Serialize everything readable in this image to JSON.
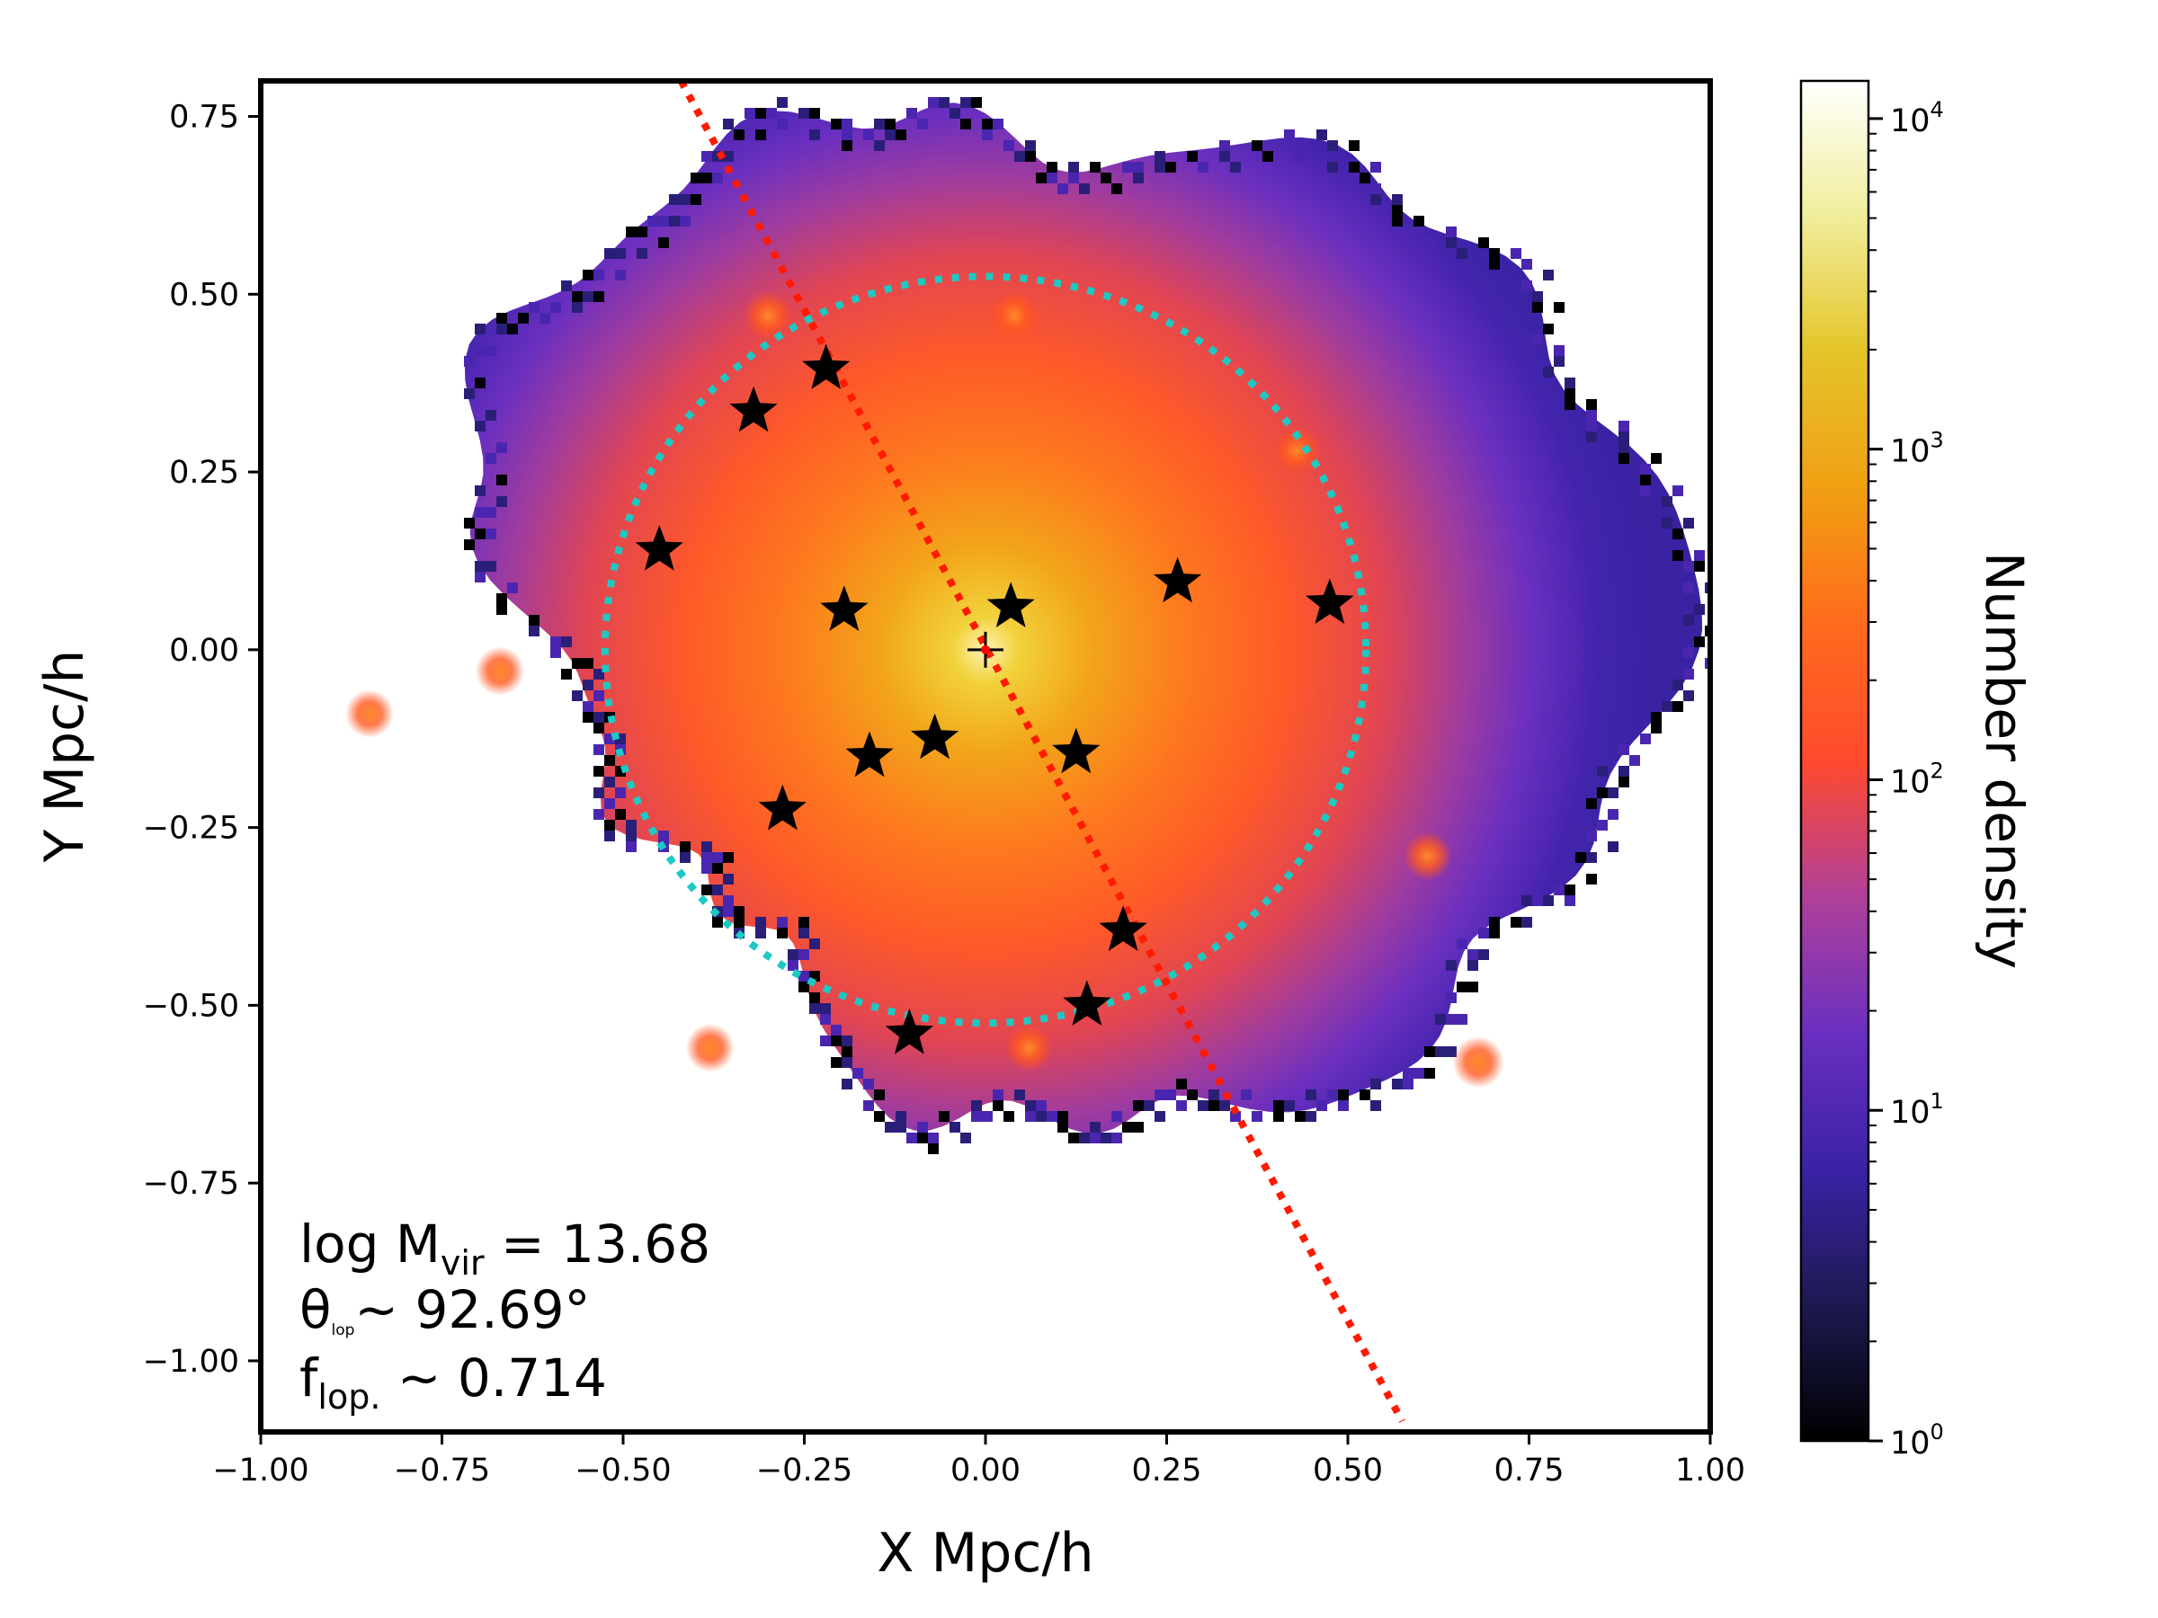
{
  "chart_data": {
    "type": "heatmap",
    "description_of_panel": "2D histogram of particle number density with overlaid satellite positions",
    "xlabel": "X Mpc/h",
    "ylabel": "Y Mpc/h",
    "xlim": [
      -1.0,
      1.0
    ],
    "ylim": [
      -1.1,
      0.8
    ],
    "xticks": [
      -1.0,
      -0.75,
      -0.5,
      -0.25,
      0.0,
      0.25,
      0.5,
      0.75,
      1.0
    ],
    "xtick_labels": [
      "−1.00",
      "−0.75",
      "−0.50",
      "−0.25",
      "0.00",
      "0.25",
      "0.50",
      "0.75",
      "1.00"
    ],
    "yticks": [
      0.75,
      0.5,
      0.25,
      0.0,
      -0.25,
      -0.5,
      -0.75,
      -1.0
    ],
    "ytick_labels": [
      "0.75",
      "0.50",
      "0.25",
      "0.00",
      "−0.25",
      "−0.50",
      "−0.75",
      "−1.00"
    ],
    "colorbar": {
      "label": "Number density",
      "scale": "log",
      "range": [
        1,
        13000
      ],
      "colormap": [
        "#000000",
        "#1c1a50",
        "#3b22a6",
        "#6a2fc0",
        "#b0409a",
        "#ff4a2e",
        "#ff6a1c",
        "#f0a012",
        "#e4c428",
        "#f0ee9a",
        "#ffffff"
      ],
      "major_ticks": [
        {
          "value": 1,
          "base": "10",
          "exp": "0"
        },
        {
          "value": 10,
          "base": "10",
          "exp": "1"
        },
        {
          "value": 100,
          "base": "10",
          "exp": "2"
        },
        {
          "value": 1000,
          "base": "10",
          "exp": "3"
        },
        {
          "value": 10000,
          "base": "10",
          "exp": "4"
        }
      ]
    },
    "density_field": {
      "center": [
        0.0,
        0.0
      ],
      "peak_density": 9000,
      "substructure_clumps": [
        {
          "x": -0.85,
          "y": -0.09,
          "density": 140
        },
        {
          "x": -0.67,
          "y": -0.03,
          "density": 160
        },
        {
          "x": 0.68,
          "y": -0.58,
          "density": 300
        },
        {
          "x": 0.61,
          "y": -0.29,
          "density": 160
        },
        {
          "x": -0.38,
          "y": -0.56,
          "density": 150
        },
        {
          "x": -0.3,
          "y": 0.47,
          "density": 200
        },
        {
          "x": 0.04,
          "y": 0.47,
          "density": 200
        },
        {
          "x": 0.43,
          "y": 0.28,
          "density": 150
        },
        {
          "x": 0.06,
          "y": -0.56,
          "density": 130
        }
      ]
    },
    "satellites": {
      "marker": "star",
      "color": "#000000",
      "points": [
        {
          "x": -0.22,
          "y": 0.395
        },
        {
          "x": -0.32,
          "y": 0.335
        },
        {
          "x": -0.45,
          "y": 0.14
        },
        {
          "x": -0.195,
          "y": 0.055
        },
        {
          "x": 0.035,
          "y": 0.06
        },
        {
          "x": 0.265,
          "y": 0.095
        },
        {
          "x": 0.475,
          "y": 0.065
        },
        {
          "x": -0.07,
          "y": -0.125
        },
        {
          "x": -0.16,
          "y": -0.15
        },
        {
          "x": 0.125,
          "y": -0.145
        },
        {
          "x": -0.28,
          "y": -0.225
        },
        {
          "x": 0.19,
          "y": -0.395
        },
        {
          "x": 0.14,
          "y": -0.5
        },
        {
          "x": -0.105,
          "y": -0.54
        }
      ]
    },
    "center_marker": {
      "x": 0.0,
      "y": 0.0,
      "marker": "plus",
      "dot_color": "#ff0000"
    },
    "virial_circle": {
      "center": [
        0.0,
        0.0
      ],
      "radius": 0.525,
      "style": "dotted",
      "color": "#1cc9c3"
    },
    "plane_line": {
      "start": [
        -0.42,
        0.8
      ],
      "end": [
        0.575,
        -1.085
      ],
      "style": "dotted",
      "color": "#ff1a00"
    },
    "annotations": {
      "mass": {
        "prefix": "log M",
        "sub": "vir",
        "suffix": " = 13.68"
      },
      "angle": {
        "symbol": "θ",
        "sub": "lop",
        "suffix": "~ 92.69°"
      },
      "fraction": {
        "symbol": "f",
        "sub": "lop.",
        "suffix": " ~ 0.714"
      }
    }
  }
}
